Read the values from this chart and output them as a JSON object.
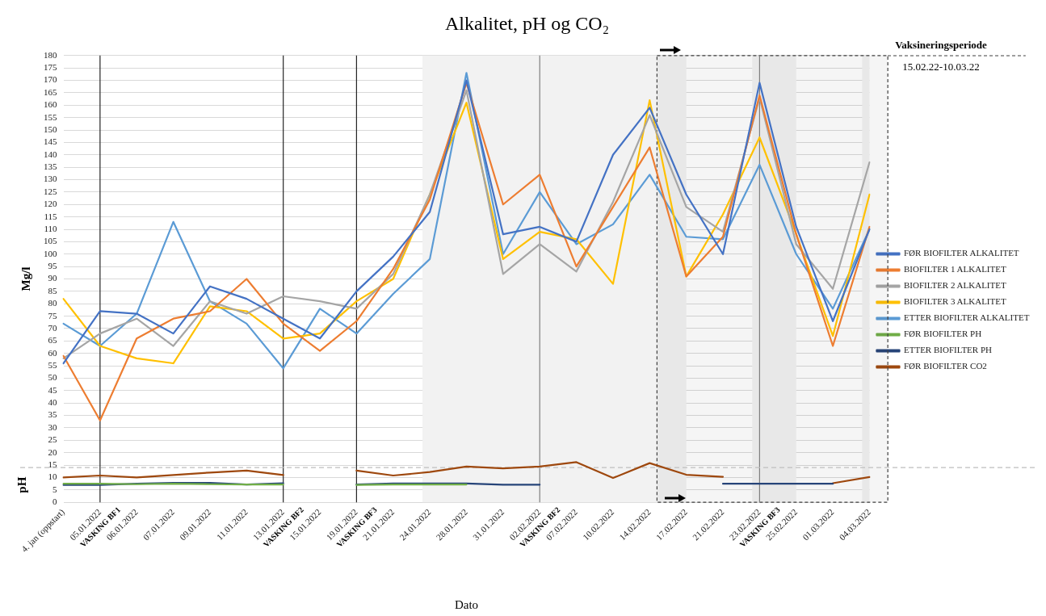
{
  "chart_data": {
    "type": "line",
    "title": "Alkalitet, pH og CO₂",
    "xlabel": "Dato",
    "ylabel": "Mg/l",
    "categories": [
      "4. jan (oppstart)",
      "05.01.2022",
      "06.01.2022",
      "07.01.2022",
      "09.01.2022",
      "11.01.2022",
      "13.01.2022",
      "15.01.2022",
      "19.01.2022",
      "21.01.2022",
      "24.01.2022",
      "28.01.2022",
      "31.01.2022",
      "02.02.2022",
      "07.02.2022",
      "10.02.2022",
      "14.02.2022",
      "17.02.2022",
      "21.02.2022",
      "23.02.2022",
      "25.02.2022",
      "01.03.2022",
      "04.03.2022"
    ],
    "series": [
      {
        "name": "FØR BIOFILTER ALKALITET",
        "color": "#4472c4",
        "values": [
          56,
          77,
          76,
          68,
          87,
          82,
          74,
          66,
          85,
          99,
          117,
          170,
          108,
          111,
          105,
          140,
          159,
          124,
          100,
          169,
          111,
          73,
          110
        ]
      },
      {
        "name": "BIOFILTER 1 ALKALITET",
        "color": "#ed7d31",
        "values": [
          59,
          33,
          66,
          74,
          77,
          90,
          72,
          61,
          73,
          94,
          122,
          169,
          120,
          132,
          95,
          119,
          143,
          91,
          107,
          164,
          108,
          63,
          111
        ]
      },
      {
        "name": "BIOFILTER 2 ALKALITET",
        "color": "#a5a5a5",
        "values": [
          58,
          68,
          74,
          63,
          81,
          76,
          83,
          81,
          78,
          92,
          124,
          166,
          92,
          104,
          93,
          121,
          156,
          119,
          109,
          163,
          104,
          86,
          137
        ]
      },
      {
        "name": "BIOFILTER 3 ALKALITET",
        "color": "#ffc000",
        "values": [
          82,
          63,
          58,
          56,
          79,
          77,
          66,
          68,
          81,
          90,
          124,
          161,
          98,
          109,
          106,
          88,
          162,
          91,
          116,
          147,
          108,
          67,
          124
        ]
      },
      {
        "name": "ETTER BIOFILTER ALKALITET",
        "color": "#5b9bd5",
        "values": [
          72,
          63,
          76,
          113,
          81,
          72,
          54,
          78,
          68,
          84,
          98,
          173,
          100,
          125,
          104,
          112,
          132,
          107,
          106,
          136,
          100,
          78,
          110
        ]
      },
      {
        "name": "FØR BIOFILTER PH",
        "color": "#70ad47",
        "values": [
          7.5,
          7.5,
          7.3,
          7.5,
          7.3,
          7.2,
          7.2,
          null,
          7,
          7.2,
          7.2,
          7.2,
          null,
          null,
          null,
          null,
          null,
          null,
          null,
          null,
          null,
          null,
          null
        ]
      },
      {
        "name": "ETTER BIOFILTER PH",
        "color": "#264478",
        "values": [
          7,
          7,
          7.5,
          7.8,
          7.8,
          7.2,
          7.7,
          null,
          7.2,
          7.6,
          7.6,
          7.6,
          7.1,
          7.1,
          null,
          null,
          null,
          null,
          7.5,
          7.5,
          7.5,
          7.5,
          null
        ]
      },
      {
        "name": "FØR BIOFILTER CO2",
        "color": "#9e480e",
        "values": [
          10,
          10.8,
          10,
          11,
          12,
          12.8,
          11,
          null,
          12.8,
          10.8,
          12.2,
          14.4,
          13.7,
          14.4,
          16.2,
          9.8,
          15.8,
          11.1,
          10.3,
          null,
          null,
          7.7,
          10.2
        ]
      }
    ],
    "ylim": [
      0,
      180
    ],
    "yticks": [
      0,
      5,
      10,
      15,
      20,
      25,
      30,
      35,
      40,
      45,
      50,
      55,
      60,
      65,
      70,
      75,
      80,
      85,
      90,
      95,
      100,
      105,
      110,
      115,
      120,
      125,
      130,
      135,
      140,
      145,
      150,
      155,
      160,
      165,
      170,
      175,
      180
    ],
    "grid": "y",
    "legend": "right",
    "marker": "none",
    "line_style": "solid",
    "ref_lines": [
      {
        "axis": "x",
        "value": "05.01.2022",
        "label": "VASKING BF1",
        "color": "#262626"
      },
      {
        "axis": "x",
        "value": "13.01.2022",
        "label": "VASKING BF2",
        "color": "#262626"
      },
      {
        "axis": "x",
        "value": "19.01.2022",
        "label": "VASKING BF3",
        "color": "#262626"
      },
      {
        "axis": "x",
        "value": "02.02.2022",
        "label": "VASKING BF2",
        "color": "#7f7f7f"
      },
      {
        "axis": "x",
        "value": "23.02.2022",
        "label": "VASKING BF3",
        "color": "#7f7f7f"
      },
      {
        "axis": "y",
        "value": 14,
        "label": "pH",
        "color": "#bfbfbf",
        "line_style": "dashed"
      }
    ],
    "bands": [
      {
        "axis": "x",
        "from": "24.01.2022",
        "to": "17.02.2022",
        "color": "#f2f2f2"
      },
      {
        "axis": "x",
        "from": "23.02.2022",
        "to": "25.02.2022",
        "color": "#f2f2f2"
      },
      {
        "axis": "x",
        "from": "04.03.2022",
        "to": "04.03.2022",
        "color": "#f2f2f2"
      },
      {
        "axis": "x",
        "from": "14.02.2022",
        "to": "04.03.2022",
        "label": "Vaksineringsperiode",
        "color": "#404040"
      }
    ],
    "annotations": [
      "15.02.22-10.03.22"
    ]
  }
}
